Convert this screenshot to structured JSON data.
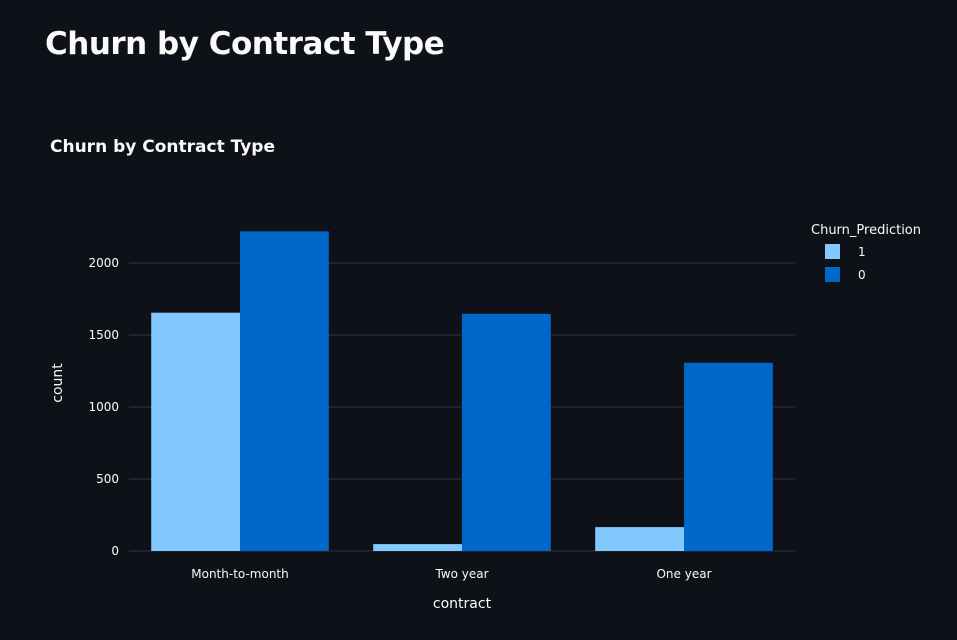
{
  "page": {
    "title": "Churn by Contract Type"
  },
  "colors": {
    "background": "#0e1117",
    "grid": "#31333f",
    "text": "#fafafa",
    "series_1": "#83c9ff",
    "series_0": "#0068c9"
  },
  "chart_data": {
    "type": "bar",
    "barmode": "group",
    "title": "Churn by Contract Type",
    "xlabel": "contract",
    "ylabel": "count",
    "categories": [
      "Month-to-month",
      "Two year",
      "One year"
    ],
    "series": [
      {
        "name": "1",
        "values": [
          1655,
          48,
          166
        ],
        "color": "#83c9ff"
      },
      {
        "name": "0",
        "values": [
          2220,
          1647,
          1307
        ],
        "color": "#0068c9"
      }
    ],
    "ylim": [
      0,
      2400
    ],
    "yticks": [
      0,
      500,
      1000,
      1500,
      2000
    ],
    "ytick_labels": [
      "0",
      "500",
      "1000",
      "1500",
      "2000"
    ],
    "legend": {
      "title": "Churn_Prediction",
      "placement": "top-right"
    },
    "grid": true
  }
}
